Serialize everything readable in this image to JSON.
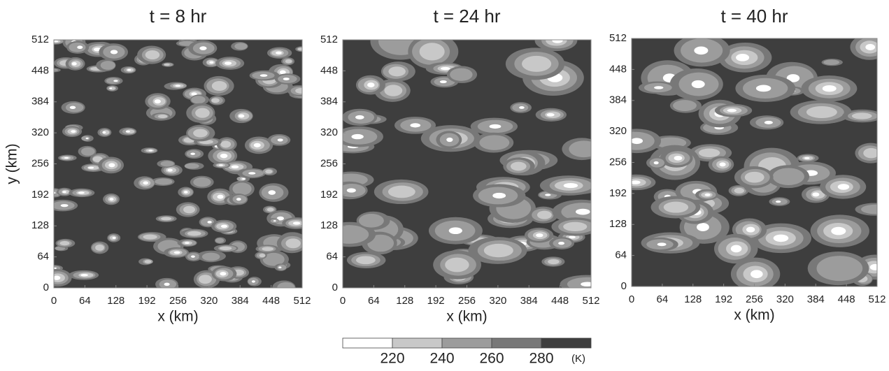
{
  "chart_data": [
    {
      "type": "contour",
      "title": "t = 8 hr",
      "x_label": "x (km)",
      "y_label": "y (km)",
      "xlim": [
        0,
        512
      ],
      "ylim": [
        0,
        512
      ],
      "xticks": [
        0,
        64,
        128,
        192,
        256,
        320,
        384,
        448,
        512
      ],
      "yticks": [
        0,
        64,
        128,
        192,
        256,
        320,
        384,
        448,
        512
      ]
    },
    {
      "type": "contour",
      "title": "t = 24 hr",
      "x_label": "x (km)",
      "xlim": [
        0,
        512
      ],
      "ylim": [
        0,
        512
      ],
      "xticks": [
        0,
        64,
        128,
        192,
        256,
        320,
        384,
        448,
        512
      ],
      "yticks": [
        0,
        64,
        128,
        192,
        256,
        320,
        384,
        448,
        512
      ]
    },
    {
      "type": "contour",
      "title": "t = 40 hr",
      "x_label": "x (km)",
      "xlim": [
        0,
        512
      ],
      "ylim": [
        0,
        512
      ],
      "xticks": [
        0,
        64,
        128,
        192,
        256,
        320,
        384,
        448,
        512
      ],
      "yticks": [
        0,
        64,
        128,
        192,
        256,
        320,
        384,
        448,
        512
      ]
    }
  ],
  "colorbar": {
    "ticks": [
      220,
      240,
      260,
      280
    ],
    "unit": "(K)",
    "colors": [
      "#ffffff",
      "#c8c8c8",
      "#9c9c9c",
      "#787878",
      "#3e3e3e"
    ]
  }
}
